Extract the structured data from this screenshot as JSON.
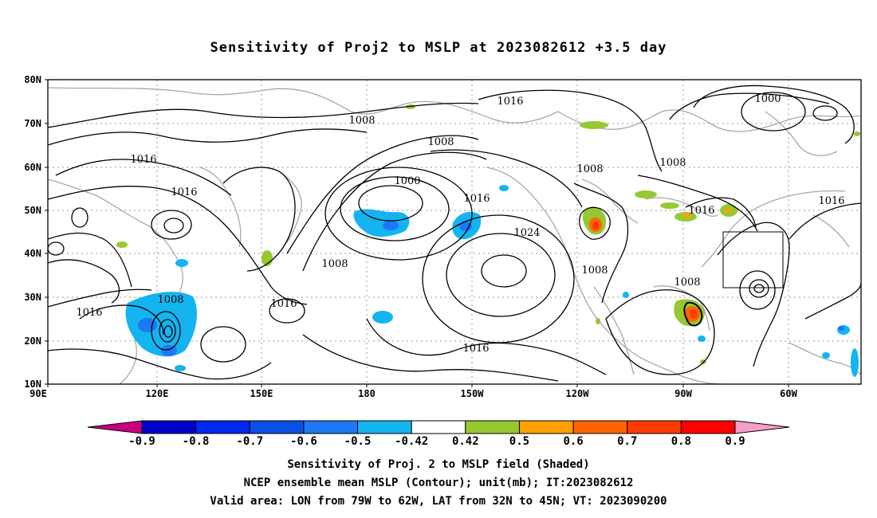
{
  "title": "Sensitivity of Proj2 to MSLP at 2023082612 +3.5 day",
  "lat_ticks": [
    "80N",
    "70N",
    "60N",
    "50N",
    "40N",
    "30N",
    "20N",
    "10N"
  ],
  "lon_ticks": [
    "90E",
    "120E",
    "150E",
    "180",
    "150W",
    "120W",
    "90W",
    "60W"
  ],
  "contour_labels": [
    "1016",
    "1008",
    "1000",
    "1008",
    "1016",
    "1016",
    "1000",
    "1008",
    "1016",
    "1024",
    "1008",
    "1016",
    "1008",
    "1016",
    "1008",
    "1008",
    "1016",
    "1008",
    "1016",
    "1016"
  ],
  "colorbar": {
    "labels": [
      "-0.9",
      "-0.8",
      "-0.7",
      "-0.6",
      "-0.5",
      "-0.42",
      "0.42",
      "0.5",
      "0.6",
      "0.7",
      "0.8",
      "0.9"
    ],
    "colors": [
      "#c8007f",
      "#0000c8",
      "#0028f0",
      "#0a50e6",
      "#1e78f5",
      "#14b4f0",
      "#ffffff",
      "#96c832",
      "#ffa000",
      "#ff6400",
      "#ff3c00",
      "#ff0000",
      "#f5a0c8"
    ]
  },
  "footer": {
    "line1": "Sensitivity of Proj. 2 to MSLP field (Shaded)",
    "line2": "NCEP ensemble mean MSLP (Contour); unit(mb); IT:2023082612",
    "line3": "Valid area: LON from 79W to 62W, LAT from 32N to 45N; VT: 2023090200"
  }
}
